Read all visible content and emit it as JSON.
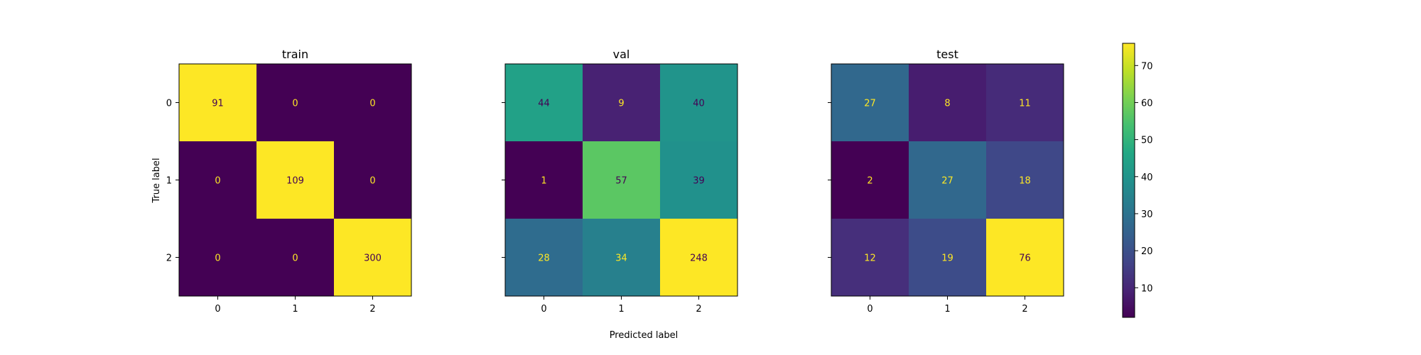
{
  "chart_data": {
    "type": "heatmap",
    "colormap": "viridis",
    "xlabel": "Predicted label",
    "ylabel": "True label",
    "class_labels": [
      "0",
      "1",
      "2"
    ],
    "colorbar": {
      "range": [
        2,
        76
      ],
      "ticks": [
        10,
        20,
        30,
        40,
        50,
        60,
        70
      ],
      "tick_labels": [
        "10",
        "20",
        "30",
        "40",
        "50",
        "60",
        "70"
      ]
    },
    "text_colors": {
      "on_dark": "#fde725",
      "on_light": "#440154"
    },
    "matrices": [
      {
        "title": "train",
        "values": [
          [
            91,
            0,
            0
          ],
          [
            0,
            109,
            0
          ],
          [
            0,
            0,
            300
          ]
        ]
      },
      {
        "title": "val",
        "values": [
          [
            44,
            9,
            40
          ],
          [
            1,
            57,
            39
          ],
          [
            28,
            34,
            248
          ]
        ]
      },
      {
        "title": "test",
        "values": [
          [
            27,
            8,
            11
          ],
          [
            2,
            27,
            18
          ],
          [
            12,
            19,
            76
          ]
        ]
      }
    ]
  }
}
